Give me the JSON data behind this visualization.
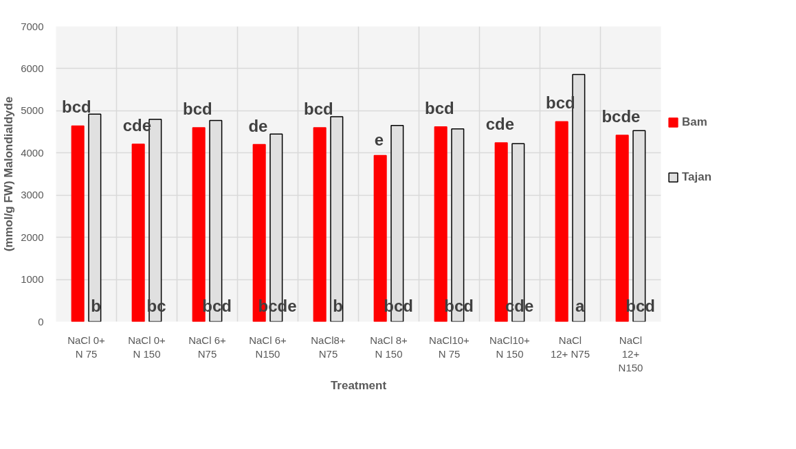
{
  "chart_data": {
    "type": "bar",
    "xlabel": "Treatment",
    "ylabel": "(mmol/g FW) Malondialdyde",
    "categories": [
      "NaCl 0+\nN 75",
      "NaCl 0+\nN 150",
      "NaCl 6+\nN75",
      "NaCl 6+\nN150",
      "NaCl8+\nN75",
      "NaCl 8+\nN 150",
      "NaCl10+\nN 75",
      "NaCl10+\nN 150",
      "NaCl\n12+ N75",
      "NaCl\n12+\nN150"
    ],
    "series": [
      {
        "name": "Bam",
        "color": "#ff0000",
        "values": [
          4640,
          4210,
          4600,
          4200,
          4600,
          3940,
          4620,
          4240,
          4740,
          4420
        ]
      },
      {
        "name": "Tajan",
        "color": "#e0e0e0",
        "values": [
          4920,
          4800,
          4770,
          4450,
          4860,
          4650,
          4570,
          4220,
          5860,
          4530
        ]
      }
    ],
    "ylim": [
      0,
      7000
    ],
    "yticks": [
      0,
      1000,
      2000,
      3000,
      4000,
      5000,
      6000,
      7000
    ],
    "grid": true,
    "legend": "right",
    "annotations": [
      "bcd",
      "cde",
      "bcd",
      "de",
      "bcd",
      "e",
      "bcd",
      "cde",
      "bcd",
      "bcde",
      "b",
      "bc",
      "bcd",
      "bcde",
      "b",
      "bcd",
      "bcd",
      "cde",
      "a",
      "bcd"
    ]
  }
}
